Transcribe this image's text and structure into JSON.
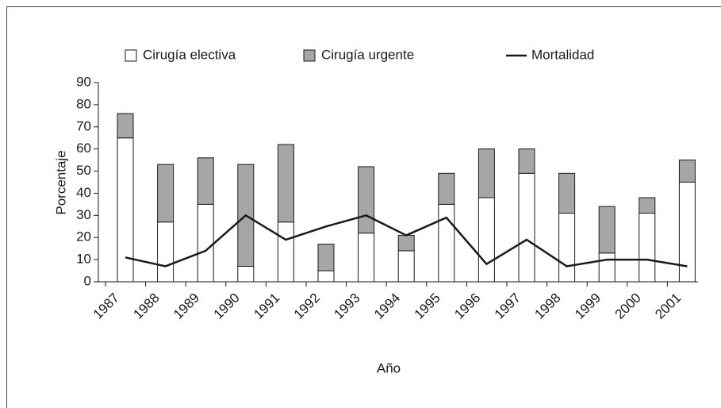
{
  "chart_data": {
    "type": "bar",
    "stacked": true,
    "categories": [
      "1987",
      "1988",
      "1989",
      "1990",
      "1991",
      "1992",
      "1993",
      "1994",
      "1995",
      "1996",
      "1997",
      "1998",
      "1999",
      "2000",
      "2001"
    ],
    "series": [
      {
        "name": "Cirugía electiva",
        "color": "#ffffff",
        "values": [
          65,
          27,
          35,
          7,
          27,
          5,
          22,
          14,
          35,
          38,
          49,
          31,
          13,
          31,
          45
        ]
      },
      {
        "name": "Cirugía urgente",
        "color": "#a6a6a6",
        "values": [
          11,
          26,
          21,
          46,
          35,
          12,
          30,
          7,
          14,
          22,
          11,
          18,
          21,
          7,
          10
        ]
      },
      {
        "name": "Mortalidad",
        "color": "#1a1a1a",
        "mark": "line",
        "values": [
          11,
          7,
          14,
          30,
          19,
          25,
          30,
          21,
          29,
          8,
          19,
          7,
          10,
          10,
          7
        ]
      }
    ],
    "xlabel": "Año",
    "ylabel": "Porcentaje",
    "ylim": [
      0,
      90
    ],
    "yticks": [
      0,
      10,
      20,
      30,
      40,
      50,
      60,
      70,
      80,
      90
    ]
  }
}
